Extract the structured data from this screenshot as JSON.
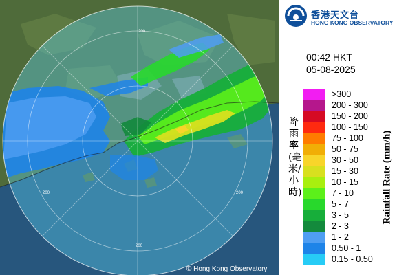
{
  "map": {
    "copyright": "© Hong Kong Observatory",
    "range_labels": [
      "200",
      "200",
      "200",
      "200"
    ],
    "colors": {
      "sea": "#27567d",
      "land": "#4f6b3a",
      "range_disc": "#5dd6f5",
      "range_ring": "#ffffff"
    }
  },
  "header": {
    "logo_icon": "hko-logo-icon",
    "logo_zh": "香港天文台",
    "logo_en": "HONG KONG OBSERVATORY",
    "time": "00:42 HKT",
    "date": "05-08-2025"
  },
  "legend": {
    "title_zh": "降雨率(毫米/小時)",
    "title_en": "Rainfall Rate (mm/h)",
    "items": [
      {
        "label": ">300",
        "color": "#f21df2"
      },
      {
        "label": "200 - 300",
        "color": "#b5178c"
      },
      {
        "label": "150 - 200",
        "color": "#d60a24"
      },
      {
        "label": "100 - 150",
        "color": "#ff2a10"
      },
      {
        "label": "75 - 100",
        "color": "#ff7c00"
      },
      {
        "label": "50 - 75",
        "color": "#f1ae06"
      },
      {
        "label": "30 - 50",
        "color": "#f8d52a"
      },
      {
        "label": "15 - 30",
        "color": "#d8e01f"
      },
      {
        "label": "10 - 15",
        "color": "#a8ef0f"
      },
      {
        "label": "7 - 10",
        "color": "#5cf01a"
      },
      {
        "label": "5 - 7",
        "color": "#28d82c"
      },
      {
        "label": "3 - 5",
        "color": "#17ae3a"
      },
      {
        "label": "2 - 3",
        "color": "#138a3c"
      },
      {
        "label": "1 - 2",
        "color": "#4f9ef2"
      },
      {
        "label": "0.50 - 1",
        "color": "#1e84e8"
      },
      {
        "label": "0.15 - 0.50",
        "color": "#27ccf6"
      }
    ]
  }
}
